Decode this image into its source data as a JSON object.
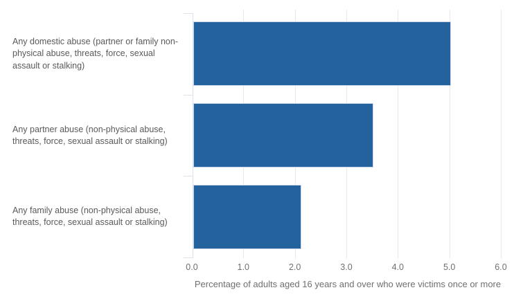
{
  "chart_data": {
    "type": "bar",
    "orientation": "horizontal",
    "title": "",
    "categories": [
      "Any domestic abuse (partner or family non-physical abuse, threats, force, sexual assault or stalking)",
      "Any partner abuse (non-physical abuse, threats, force, sexual assault or stalking)",
      "Any family abuse (non-physical abuse, threats, force, sexual assault or stalking)"
    ],
    "values": [
      5.0,
      3.5,
      2.1
    ],
    "xlabel": "Percentage of adults aged 16 years and over who were victims once or more",
    "ylabel": "",
    "xlim": [
      0,
      6
    ],
    "xticks": [
      0,
      1,
      2,
      3,
      4,
      5,
      6
    ],
    "xtick_labels": [
      "0.0",
      "1.0",
      "2.0",
      "3.0",
      "4.0",
      "5.0",
      "6.0"
    ],
    "grid": true,
    "legend": false,
    "colors": {
      "bar_fill": "#24629d",
      "bar_stroke": "#ccd6e8",
      "gridline": "#e9e9e9",
      "axis_line": "#dce1ee",
      "category_text": "#595959",
      "tick_text": "#6f6f6f",
      "axis_title_text": "#6f6f6f",
      "background": "#ffffff"
    }
  }
}
